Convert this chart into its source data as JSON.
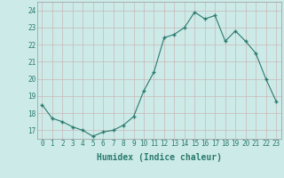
{
  "xlabel": "Humidex (Indice chaleur)",
  "x": [
    0,
    1,
    2,
    3,
    4,
    5,
    6,
    7,
    8,
    9,
    10,
    11,
    12,
    13,
    14,
    15,
    16,
    17,
    18,
    19,
    20,
    21,
    22,
    23
  ],
  "y": [
    18.5,
    17.7,
    17.5,
    17.2,
    17.0,
    16.65,
    16.9,
    17.0,
    17.3,
    17.8,
    19.3,
    20.4,
    22.4,
    22.6,
    23.0,
    23.9,
    23.5,
    23.7,
    22.2,
    22.8,
    22.2,
    21.5,
    20.0,
    18.7
  ],
  "line_color": "#2a7a6e",
  "marker_color": "#2a7a6e",
  "bg_color": "#cceae7",
  "grid_color_major": "#c8b8b8",
  "grid_color_minor": "#d6e8e6",
  "ylim": [
    16.5,
    24.5
  ],
  "xlim": [
    -0.5,
    23.5
  ],
  "yticks": [
    17,
    18,
    19,
    20,
    21,
    22,
    23,
    24
  ],
  "xticks": [
    0,
    1,
    2,
    3,
    4,
    5,
    6,
    7,
    8,
    9,
    10,
    11,
    12,
    13,
    14,
    15,
    16,
    17,
    18,
    19,
    20,
    21,
    22,
    23
  ],
  "tick_fontsize": 5.5,
  "xlabel_fontsize": 7.0
}
